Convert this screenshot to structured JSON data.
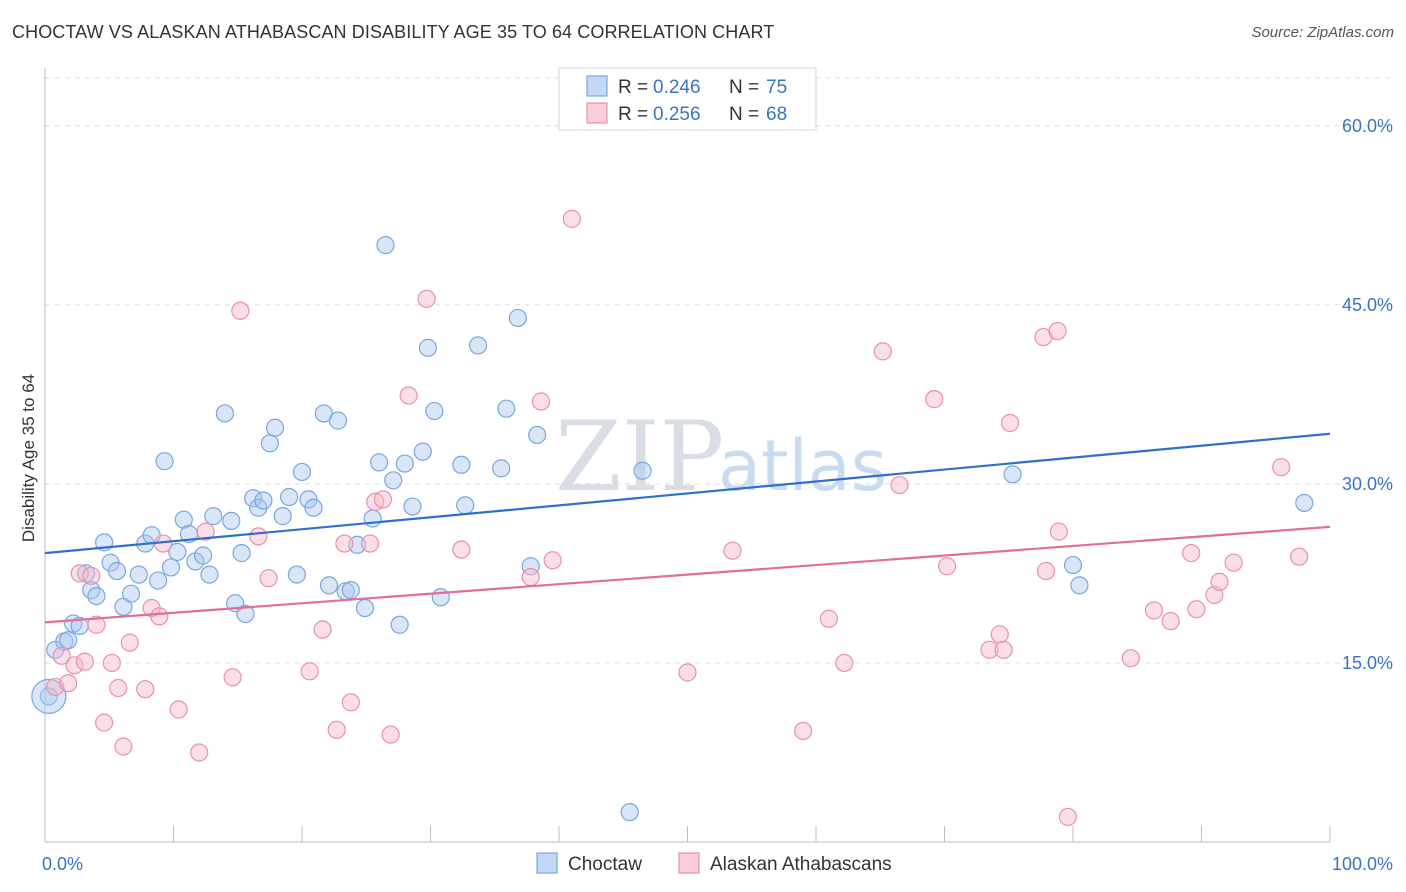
{
  "title": "CHOCTAW VS ALASKAN ATHABASCAN DISABILITY AGE 35 TO 64 CORRELATION CHART",
  "source": "Source: ZipAtlas.com",
  "watermark": {
    "zip": "ZIP",
    "atlas": "atlas"
  },
  "chart_data": {
    "type": "scatter",
    "title": "CHOCTAW VS ALASKAN ATHABASCAN DISABILITY AGE 35 TO 64 CORRELATION CHART",
    "xlabel": "",
    "ylabel": "Disability Age 35 to 64",
    "xlim": [
      0,
      100
    ],
    "ylim": [
      0,
      64
    ],
    "y_ticks": [
      15,
      30,
      45,
      60
    ],
    "y_tick_labels": [
      "15.0%",
      "30.0%",
      "45.0%",
      "60.0%"
    ],
    "x_tick_labels": [
      "0.0%",
      "100.0%"
    ],
    "grid": true,
    "legend_position": "top-center",
    "legend": [
      {
        "name": "Choctaw",
        "r_label": "R =",
        "r_value": "0.246",
        "n_label": "N =",
        "n_value": "75",
        "color": "#a9c7ef",
        "stroke": "#7aa6de"
      },
      {
        "name": "Alaskan Athabascans",
        "r_label": "R =",
        "r_value": "0.256",
        "n_label": "N =",
        "n_value": "68",
        "color": "#f7b8cb",
        "stroke": "#eb8fab"
      }
    ],
    "series": [
      {
        "name": "Choctaw",
        "color": "#a9c7ef",
        "stroke": "#7aa6de",
        "trend": {
          "x": [
            0,
            100
          ],
          "y": [
            24.2,
            34.2
          ],
          "color": "#2f6fce"
        },
        "points": [
          [
            0.3,
            12.2
          ],
          [
            0.8,
            16.1
          ],
          [
            1.5,
            16.8
          ],
          [
            1.8,
            16.9
          ],
          [
            2.2,
            18.3
          ],
          [
            2.7,
            18.1
          ],
          [
            3.2,
            22.5
          ],
          [
            3.6,
            21.1
          ],
          [
            4.0,
            20.6
          ],
          [
            4.6,
            25.1
          ],
          [
            5.1,
            23.4
          ],
          [
            5.6,
            22.7
          ],
          [
            6.1,
            19.7
          ],
          [
            6.7,
            20.8
          ],
          [
            7.3,
            22.4
          ],
          [
            7.8,
            25.0
          ],
          [
            8.3,
            25.7
          ],
          [
            8.8,
            21.9
          ],
          [
            9.3,
            31.9
          ],
          [
            9.8,
            23.0
          ],
          [
            10.3,
            24.3
          ],
          [
            10.8,
            27.0
          ],
          [
            11.2,
            25.8
          ],
          [
            11.7,
            23.5
          ],
          [
            12.3,
            24.0
          ],
          [
            12.8,
            22.4
          ],
          [
            13.1,
            27.3
          ],
          [
            14.0,
            35.9
          ],
          [
            14.5,
            26.9
          ],
          [
            14.8,
            20.0
          ],
          [
            15.3,
            24.2
          ],
          [
            15.6,
            19.1
          ],
          [
            16.2,
            28.8
          ],
          [
            16.6,
            28.0
          ],
          [
            17.0,
            28.6
          ],
          [
            17.5,
            33.4
          ],
          [
            17.9,
            34.7
          ],
          [
            18.5,
            27.3
          ],
          [
            19.0,
            28.9
          ],
          [
            19.6,
            22.4
          ],
          [
            20.0,
            31.0
          ],
          [
            20.5,
            28.7
          ],
          [
            20.9,
            28.0
          ],
          [
            21.7,
            35.9
          ],
          [
            22.1,
            21.5
          ],
          [
            22.8,
            35.3
          ],
          [
            23.4,
            21.0
          ],
          [
            23.8,
            21.1
          ],
          [
            24.3,
            24.9
          ],
          [
            24.9,
            19.6
          ],
          [
            25.5,
            27.1
          ],
          [
            26.0,
            31.8
          ],
          [
            26.5,
            50.0
          ],
          [
            27.1,
            30.3
          ],
          [
            27.6,
            18.2
          ],
          [
            28.0,
            31.7
          ],
          [
            28.6,
            28.1
          ],
          [
            29.4,
            32.7
          ],
          [
            29.8,
            41.4
          ],
          [
            30.3,
            36.1
          ],
          [
            30.8,
            20.5
          ],
          [
            32.4,
            31.6
          ],
          [
            32.7,
            28.2
          ],
          [
            33.7,
            41.6
          ],
          [
            35.5,
            31.3
          ],
          [
            35.9,
            36.3
          ],
          [
            36.8,
            43.9
          ],
          [
            37.8,
            23.1
          ],
          [
            38.3,
            34.1
          ],
          [
            45.5,
            2.5
          ],
          [
            46.5,
            31.1
          ],
          [
            75.3,
            30.8
          ],
          [
            80.0,
            23.2
          ],
          [
            80.5,
            21.5
          ],
          [
            98.0,
            28.4
          ]
        ]
      },
      {
        "name": "Alaskan Athabascans",
        "color": "#f7b8cb",
        "stroke": "#eb8fab",
        "trend": {
          "x": [
            0,
            100
          ],
          "y": [
            18.4,
            26.4
          ],
          "color": "#e36d95"
        },
        "points": [
          [
            0.8,
            13.0
          ],
          [
            1.3,
            15.6
          ],
          [
            1.8,
            13.3
          ],
          [
            2.3,
            14.8
          ],
          [
            2.7,
            22.5
          ],
          [
            3.1,
            15.1
          ],
          [
            3.6,
            22.3
          ],
          [
            4.0,
            18.2
          ],
          [
            4.6,
            10.0
          ],
          [
            5.2,
            15.0
          ],
          [
            5.7,
            12.9
          ],
          [
            6.1,
            8.0
          ],
          [
            6.6,
            16.7
          ],
          [
            7.8,
            12.8
          ],
          [
            8.3,
            19.6
          ],
          [
            8.9,
            18.9
          ],
          [
            9.2,
            25.0
          ],
          [
            10.4,
            11.1
          ],
          [
            12.0,
            7.5
          ],
          [
            12.5,
            26.0
          ],
          [
            14.6,
            13.8
          ],
          [
            15.2,
            44.5
          ],
          [
            16.6,
            25.6
          ],
          [
            17.4,
            22.1
          ],
          [
            20.6,
            14.3
          ],
          [
            21.6,
            17.8
          ],
          [
            22.7,
            9.4
          ],
          [
            23.3,
            25.0
          ],
          [
            23.8,
            11.7
          ],
          [
            25.3,
            25.0
          ],
          [
            25.7,
            28.5
          ],
          [
            26.3,
            28.7
          ],
          [
            26.9,
            9.0
          ],
          [
            28.3,
            37.4
          ],
          [
            29.7,
            45.5
          ],
          [
            32.4,
            24.5
          ],
          [
            37.8,
            22.2
          ],
          [
            38.6,
            36.9
          ],
          [
            39.5,
            23.6
          ],
          [
            41.0,
            52.2
          ],
          [
            50.0,
            14.2
          ],
          [
            53.5,
            24.4
          ],
          [
            59.0,
            9.3
          ],
          [
            61.0,
            18.7
          ],
          [
            62.2,
            15.0
          ],
          [
            65.2,
            41.1
          ],
          [
            66.5,
            29.9
          ],
          [
            69.2,
            37.1
          ],
          [
            70.2,
            23.1
          ],
          [
            73.5,
            16.1
          ],
          [
            74.3,
            17.4
          ],
          [
            74.6,
            16.1
          ],
          [
            75.1,
            35.1
          ],
          [
            77.7,
            42.3
          ],
          [
            77.9,
            22.7
          ],
          [
            78.8,
            42.8
          ],
          [
            78.9,
            26.0
          ],
          [
            79.6,
            2.1
          ],
          [
            84.5,
            15.4
          ],
          [
            86.3,
            19.4
          ],
          [
            87.6,
            18.5
          ],
          [
            89.2,
            24.2
          ],
          [
            89.6,
            19.5
          ],
          [
            91.0,
            20.7
          ],
          [
            91.4,
            21.8
          ],
          [
            92.5,
            23.4
          ],
          [
            96.2,
            31.4
          ],
          [
            97.6,
            23.9
          ]
        ]
      }
    ]
  }
}
